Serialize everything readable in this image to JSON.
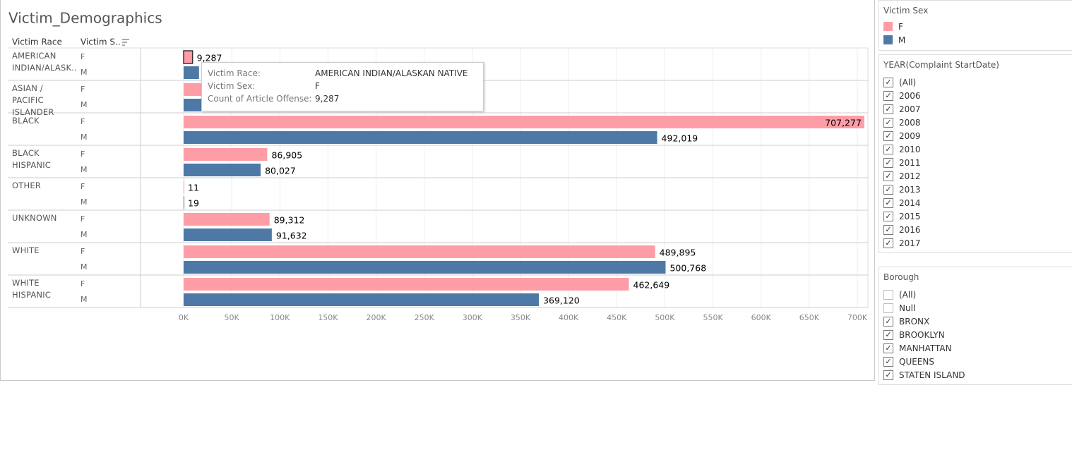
{
  "chart_data": {
    "type": "bar",
    "title": "Victim_Demographics",
    "row_header": "Victim Race",
    "sex_header": "Victim S..",
    "categories": [
      "AMERICAN INDIAN/ALASK..",
      "ASIAN / PACIFIC ISLANDER",
      "BLACK",
      "BLACK HISPANIC",
      "OTHER",
      "UNKNOWN",
      "WHITE",
      "WHITE HISPANIC"
    ],
    "series": [
      {
        "name": "F",
        "color": "#ff9da7",
        "values": [
          9287,
          35000,
          707277,
          86905,
          11,
          89312,
          489895,
          462649
        ],
        "value_labels": [
          "9,287",
          null,
          "707,277",
          "86,905",
          "11",
          "89,312",
          "489,895",
          "462,649"
        ]
      },
      {
        "name": "M",
        "color": "#4e79a7",
        "values": [
          16000,
          30000,
          492019,
          80027,
          19,
          91632,
          500768,
          369120
        ],
        "value_labels": [
          null,
          null,
          "492,019",
          "80,027",
          "19",
          "91,632",
          "500,768",
          "369,120"
        ]
      }
    ],
    "xlim": [
      0,
      711000
    ],
    "xticks": [
      {
        "value": 0,
        "label": "0K"
      },
      {
        "value": 50000,
        "label": "50K"
      },
      {
        "value": 100000,
        "label": "100K"
      },
      {
        "value": 150000,
        "label": "150K"
      },
      {
        "value": 200000,
        "label": "200K"
      },
      {
        "value": 250000,
        "label": "250K"
      },
      {
        "value": 300000,
        "label": "300K"
      },
      {
        "value": 350000,
        "label": "350K"
      },
      {
        "value": 400000,
        "label": "400K"
      },
      {
        "value": 450000,
        "label": "450K"
      },
      {
        "value": 500000,
        "label": "500K"
      },
      {
        "value": 550000,
        "label": "550K"
      },
      {
        "value": 600000,
        "label": "600K"
      },
      {
        "value": 650000,
        "label": "650K"
      },
      {
        "value": 700000,
        "label": "700K"
      }
    ],
    "grid": true
  },
  "tooltip": {
    "rows": [
      {
        "key": "Victim Race:",
        "val": "AMERICAN INDIAN/ALASKAN NATIVE"
      },
      {
        "key": "Victim Sex:",
        "val": "F"
      },
      {
        "key": "Count of Article Offense:",
        "val": "9,287"
      }
    ]
  },
  "legend": {
    "title": "Victim Sex"
  },
  "filters": [
    {
      "title": "YEAR(Complaint StartDate)",
      "items": [
        {
          "label": "(All)",
          "checked": true
        },
        {
          "label": "2006",
          "checked": true
        },
        {
          "label": "2007",
          "checked": true
        },
        {
          "label": "2008",
          "checked": true
        },
        {
          "label": "2009",
          "checked": true
        },
        {
          "label": "2010",
          "checked": true
        },
        {
          "label": "2011",
          "checked": true
        },
        {
          "label": "2012",
          "checked": true
        },
        {
          "label": "2013",
          "checked": true
        },
        {
          "label": "2014",
          "checked": true
        },
        {
          "label": "2015",
          "checked": true
        },
        {
          "label": "2016",
          "checked": true
        },
        {
          "label": "2017",
          "checked": true
        }
      ]
    },
    {
      "title": "Borough",
      "items": [
        {
          "label": "(All)",
          "checked": false
        },
        {
          "label": "Null",
          "checked": false
        },
        {
          "label": "BRONX",
          "checked": true
        },
        {
          "label": "BROOKLYN",
          "checked": true
        },
        {
          "label": "MANHATTAN",
          "checked": true
        },
        {
          "label": "QUEENS",
          "checked": true
        },
        {
          "label": "STATEN ISLAND",
          "checked": true
        }
      ]
    }
  ]
}
